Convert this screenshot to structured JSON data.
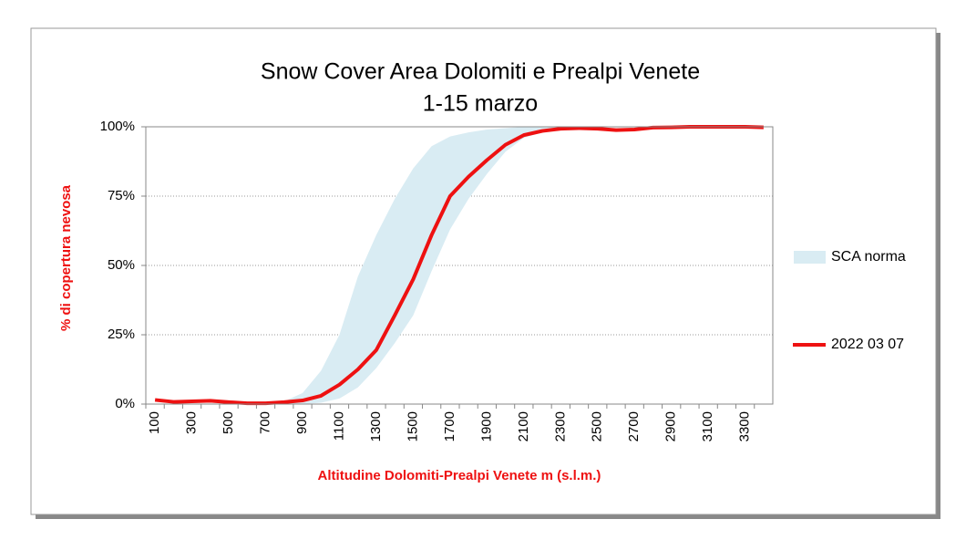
{
  "chart_data": {
    "type": "line",
    "title": [
      "Snow Cover Area Dolomiti e Prealpi Venete",
      "1-15 marzo"
    ],
    "x_label": "Altitudine Dolomiti-Prealpi Venete m (s.l.m.)",
    "y_label": "% di copertura nevosa",
    "categories": [
      "100",
      null,
      "300",
      null,
      "500",
      null,
      "700",
      null,
      "900",
      null,
      "1100",
      null,
      "1300",
      null,
      "1500",
      null,
      "1700",
      null,
      "1900",
      null,
      "2100",
      null,
      "2300",
      null,
      "2500",
      null,
      "2700",
      null,
      "2900",
      null,
      "3100",
      null,
      "3300",
      null
    ],
    "ylim": [
      0,
      100
    ],
    "yticks": [
      {
        "value": 0,
        "label": "0%"
      },
      {
        "value": 25,
        "label": "25%"
      },
      {
        "value": 50,
        "label": "50%"
      },
      {
        "value": 75,
        "label": "75%"
      },
      {
        "value": 100,
        "label": "100%"
      }
    ],
    "grid": true,
    "series": [
      {
        "name": "SCA norma",
        "type": "band",
        "color": "#d9ecf3",
        "lower": [
          0,
          0,
          0,
          0,
          0,
          0,
          0,
          0,
          0,
          0.5,
          2,
          6,
          13,
          22,
          32,
          48,
          63,
          74,
          83,
          91,
          96,
          98,
          99,
          99.5,
          100,
          100,
          100,
          100,
          100,
          100,
          100,
          100,
          100,
          100
        ],
        "upper": [
          0,
          0,
          0,
          0,
          0,
          0,
          0,
          1,
          4,
          12,
          25,
          46,
          61,
          74,
          85,
          93,
          96.5,
          98,
          99,
          99.5,
          100,
          100,
          100,
          100,
          100,
          100,
          100,
          100,
          100,
          100,
          100,
          100,
          100,
          100
        ]
      },
      {
        "name": "2022 03 07",
        "type": "line",
        "color": "#ee1111",
        "values": [
          1.5,
          0.8,
          1,
          1.2,
          0.7,
          0.3,
          0.3,
          0.7,
          1.3,
          3,
          7,
          12.5,
          19.5,
          32,
          45,
          61,
          75,
          82,
          88,
          93.5,
          97,
          98.5,
          99.3,
          99.5,
          99.3,
          98.8,
          99,
          99.7,
          99.8,
          100,
          100,
          100,
          100,
          99.8
        ]
      }
    ]
  }
}
